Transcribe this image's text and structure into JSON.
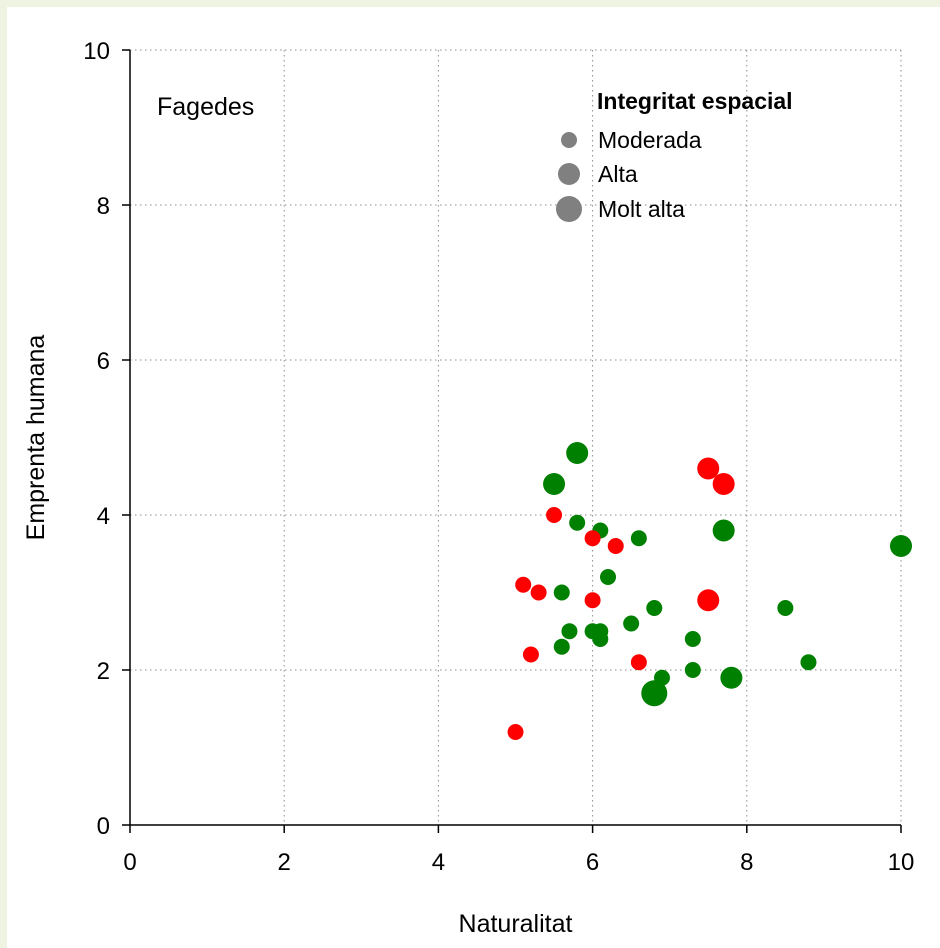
{
  "chart_data": {
    "type": "scatter",
    "title": "",
    "panel_label": "Fagedes",
    "xlabel": "Naturalitat",
    "ylabel": "Emprenta humana",
    "xlim": [
      0,
      10
    ],
    "ylim": [
      0,
      10
    ],
    "x_ticks": [
      0,
      2,
      4,
      6,
      8,
      10
    ],
    "y_ticks": [
      0,
      2,
      4,
      6,
      8,
      10
    ],
    "grid": "dotted",
    "colors": {
      "green": "#008000",
      "red": "#ff0000",
      "legend": "#808080"
    },
    "legend": {
      "title": "Integritat espacial",
      "placement": "top-right",
      "items": [
        {
          "label": "Moderada",
          "size": "moderada"
        },
        {
          "label": "Alta",
          "size": "alta"
        },
        {
          "label": "Molt alta",
          "size": "molt-alta"
        }
      ]
    },
    "points": [
      {
        "x": 5.8,
        "y": 4.8,
        "color": "green",
        "size": "alta"
      },
      {
        "x": 5.5,
        "y": 4.4,
        "color": "green",
        "size": "alta"
      },
      {
        "x": 7.5,
        "y": 4.6,
        "color": "red",
        "size": "alta"
      },
      {
        "x": 7.7,
        "y": 4.4,
        "color": "red",
        "size": "alta"
      },
      {
        "x": 5.5,
        "y": 4.0,
        "color": "red",
        "size": "moderada"
      },
      {
        "x": 5.8,
        "y": 3.9,
        "color": "green",
        "size": "moderada"
      },
      {
        "x": 6.1,
        "y": 3.8,
        "color": "green",
        "size": "moderada"
      },
      {
        "x": 6.0,
        "y": 3.7,
        "color": "red",
        "size": "moderada"
      },
      {
        "x": 6.3,
        "y": 3.6,
        "color": "red",
        "size": "moderada"
      },
      {
        "x": 6.6,
        "y": 3.7,
        "color": "green",
        "size": "moderada"
      },
      {
        "x": 7.7,
        "y": 3.8,
        "color": "green",
        "size": "alta"
      },
      {
        "x": 10.0,
        "y": 3.6,
        "color": "green",
        "size": "alta"
      },
      {
        "x": 6.2,
        "y": 3.2,
        "color": "green",
        "size": "moderada"
      },
      {
        "x": 5.1,
        "y": 3.1,
        "color": "red",
        "size": "moderada"
      },
      {
        "x": 5.3,
        "y": 3.0,
        "color": "red",
        "size": "moderada"
      },
      {
        "x": 5.6,
        "y": 3.0,
        "color": "green",
        "size": "moderada"
      },
      {
        "x": 6.0,
        "y": 2.9,
        "color": "red",
        "size": "moderada"
      },
      {
        "x": 7.5,
        "y": 2.9,
        "color": "red",
        "size": "alta"
      },
      {
        "x": 6.8,
        "y": 2.8,
        "color": "green",
        "size": "moderada"
      },
      {
        "x": 8.5,
        "y": 2.8,
        "color": "green",
        "size": "moderada"
      },
      {
        "x": 6.5,
        "y": 2.6,
        "color": "green",
        "size": "moderada"
      },
      {
        "x": 5.7,
        "y": 2.5,
        "color": "green",
        "size": "moderada"
      },
      {
        "x": 6.0,
        "y": 2.5,
        "color": "green",
        "size": "moderada"
      },
      {
        "x": 6.1,
        "y": 2.5,
        "color": "green",
        "size": "moderada"
      },
      {
        "x": 6.1,
        "y": 2.4,
        "color": "green",
        "size": "moderada"
      },
      {
        "x": 7.3,
        "y": 2.4,
        "color": "green",
        "size": "moderada"
      },
      {
        "x": 5.6,
        "y": 2.3,
        "color": "green",
        "size": "moderada"
      },
      {
        "x": 5.2,
        "y": 2.2,
        "color": "red",
        "size": "moderada"
      },
      {
        "x": 6.6,
        "y": 2.1,
        "color": "red",
        "size": "moderada"
      },
      {
        "x": 8.8,
        "y": 2.1,
        "color": "green",
        "size": "moderada"
      },
      {
        "x": 7.3,
        "y": 2.0,
        "color": "green",
        "size": "moderada"
      },
      {
        "x": 6.9,
        "y": 1.9,
        "color": "green",
        "size": "moderada"
      },
      {
        "x": 7.8,
        "y": 1.9,
        "color": "green",
        "size": "alta"
      },
      {
        "x": 6.8,
        "y": 1.7,
        "color": "green",
        "size": "molt-alta"
      },
      {
        "x": 5.0,
        "y": 1.2,
        "color": "red",
        "size": "moderada"
      }
    ]
  }
}
